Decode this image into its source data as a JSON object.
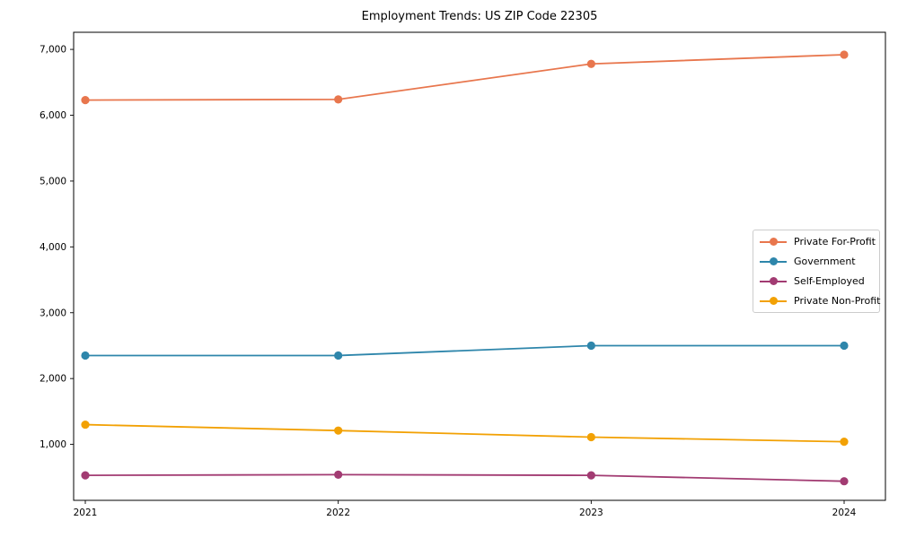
{
  "title": "Employment Trends: US ZIP Code 22305",
  "chart_data": {
    "type": "line",
    "title": "Employment Trends: US ZIP Code 22305",
    "x": [
      "2021",
      "2022",
      "2023",
      "2024"
    ],
    "series": [
      {
        "name": "Private For-Profit",
        "color": "#e8764d",
        "values": [
          6230,
          6240,
          6780,
          6920
        ]
      },
      {
        "name": "Government",
        "color": "#2e86ab",
        "values": [
          2350,
          2350,
          2500,
          2500
        ]
      },
      {
        "name": "Self-Employed",
        "color": "#a23b72",
        "values": [
          530,
          540,
          530,
          440
        ]
      },
      {
        "name": "Private Non-Profit",
        "color": "#f2a104",
        "values": [
          1300,
          1210,
          1110,
          1040
        ]
      }
    ],
    "xlabel": "",
    "ylabel": "",
    "y_ticks": [
      1000,
      2000,
      3000,
      4000,
      5000,
      6000,
      7000
    ],
    "y_tick_labels": [
      "1,000",
      "2,000",
      "3,000",
      "4,000",
      "5,000",
      "6,000",
      "7,000"
    ],
    "ylim": [
      150,
      7260
    ],
    "grid": false,
    "legend_position": "center right",
    "marker": "circle"
  }
}
